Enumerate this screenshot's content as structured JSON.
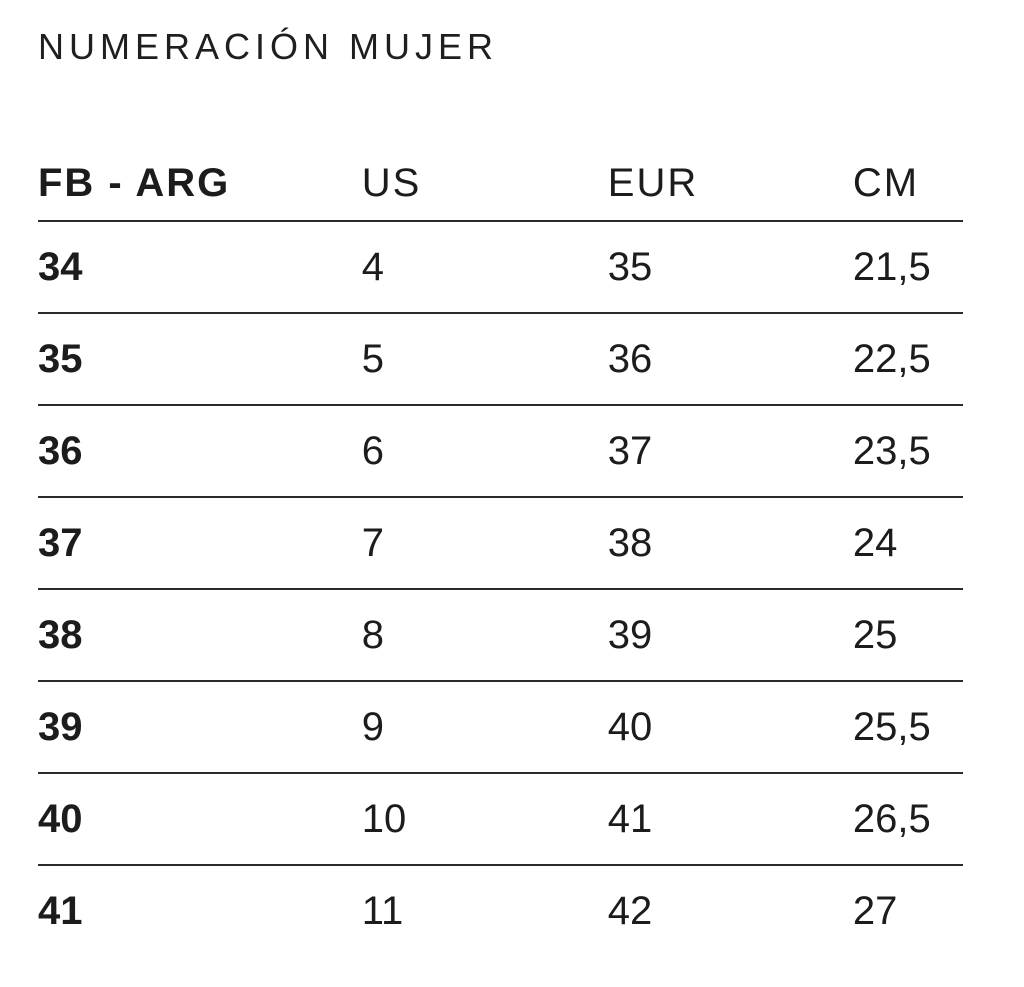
{
  "page": {
    "title": "NUMERACIÓN MUJER"
  },
  "colors": {
    "background": "#ffffff",
    "text": "#1c1c1c",
    "rule": "#2b2b2b"
  },
  "chart_data": {
    "type": "table",
    "title": "NUMERACIÓN MUJER",
    "columns": [
      "FB - ARG",
      "US",
      "EUR",
      "CM"
    ],
    "rows": [
      [
        "34",
        "4",
        "35",
        "21,5"
      ],
      [
        "35",
        "5",
        "36",
        "22,5"
      ],
      [
        "36",
        "6",
        "37",
        "23,5"
      ],
      [
        "37",
        "7",
        "38",
        "24"
      ],
      [
        "38",
        "8",
        "39",
        "25"
      ],
      [
        "39",
        "9",
        "40",
        "25,5"
      ],
      [
        "40",
        "10",
        "41",
        "26,5"
      ],
      [
        "41",
        "11",
        "42",
        "27"
      ]
    ],
    "layout": {
      "header_divider": true,
      "row_dividers": true,
      "last_row_divider": false,
      "alignment": "left"
    }
  }
}
